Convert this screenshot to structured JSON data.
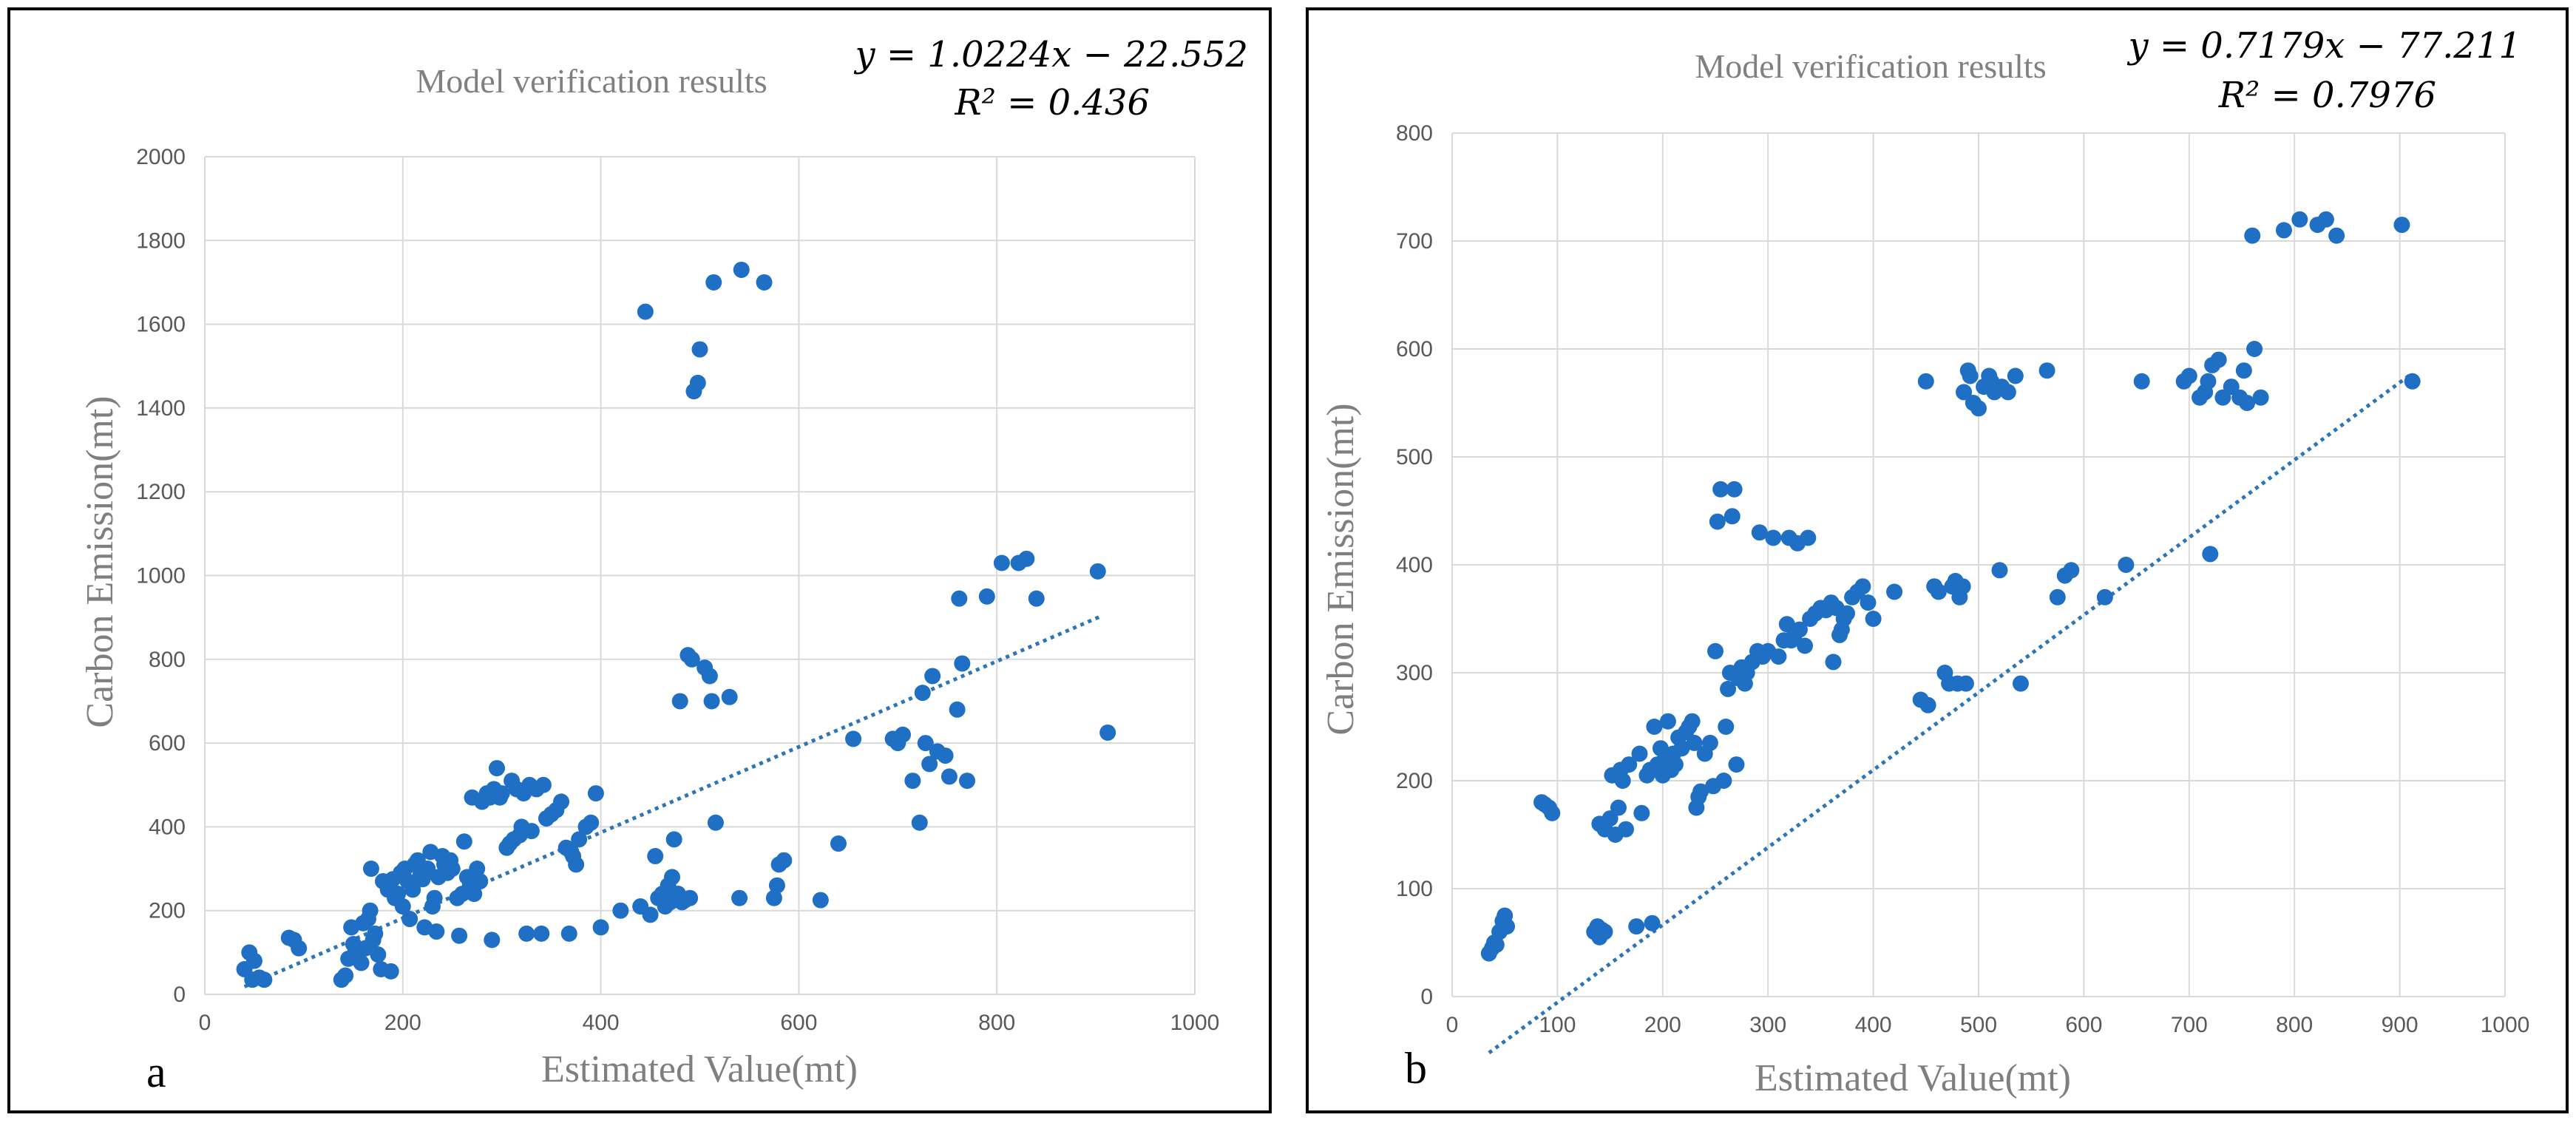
{
  "chart_data": [
    {
      "type": "scatter",
      "panel_label": "a",
      "title": "Model verification results",
      "xlabel": "Estimated Value(mt)",
      "ylabel": "Carbon Emission(mt)",
      "xlim": [
        0,
        1000
      ],
      "ylim": [
        0,
        2000
      ],
      "xticks": [
        "0",
        "200",
        "400",
        "600",
        "800",
        "1000"
      ],
      "yticks": [
        "0",
        "200",
        "400",
        "600",
        "800",
        "1000",
        "1200",
        "1400",
        "1600",
        "1800",
        "2000"
      ],
      "equation": "y = 1.0224x − 22.552",
      "r2": "R² = 0.436",
      "trendline": {
        "slope": 1.0224,
        "intercept": -22.552,
        "x_range": [
          40,
          905
        ]
      },
      "grid": true,
      "marker_color": "#1f6fc5",
      "trend_color": "#2e75b6",
      "points": [
        [
          40,
          60
        ],
        [
          45,
          100
        ],
        [
          50,
          80
        ],
        [
          48,
          35
        ],
        [
          55,
          40
        ],
        [
          60,
          35
        ],
        [
          85,
          135
        ],
        [
          90,
          130
        ],
        [
          95,
          110
        ],
        [
          138,
          35
        ],
        [
          142,
          45
        ],
        [
          145,
          85
        ],
        [
          148,
          160
        ],
        [
          150,
          120
        ],
        [
          152,
          100
        ],
        [
          155,
          95
        ],
        [
          158,
          75
        ],
        [
          160,
          170
        ],
        [
          162,
          110
        ],
        [
          165,
          180
        ],
        [
          167,
          200
        ],
        [
          170,
          130
        ],
        [
          172,
          145
        ],
        [
          175,
          95
        ],
        [
          168,
          300
        ],
        [
          178,
          60
        ],
        [
          180,
          270
        ],
        [
          185,
          250
        ],
        [
          188,
          55
        ],
        [
          190,
          275
        ],
        [
          192,
          230
        ],
        [
          195,
          240
        ],
        [
          198,
          290
        ],
        [
          200,
          210
        ],
        [
          202,
          300
        ],
        [
          205,
          270
        ],
        [
          207,
          180
        ],
        [
          210,
          250
        ],
        [
          212,
          310
        ],
        [
          215,
          320
        ],
        [
          218,
          290
        ],
        [
          220,
          275
        ],
        [
          222,
          160
        ],
        [
          225,
          300
        ],
        [
          228,
          340
        ],
        [
          230,
          210
        ],
        [
          232,
          230
        ],
        [
          234,
          150
        ],
        [
          236,
          280
        ],
        [
          240,
          330
        ],
        [
          242,
          310
        ],
        [
          245,
          290
        ],
        [
          248,
          320
        ],
        [
          250,
          300
        ],
        [
          255,
          230
        ],
        [
          257,
          140
        ],
        [
          260,
          240
        ],
        [
          262,
          365
        ],
        [
          265,
          280
        ],
        [
          268,
          260
        ],
        [
          270,
          470
        ],
        [
          272,
          240
        ],
        [
          275,
          300
        ],
        [
          278,
          270
        ],
        [
          280,
          460
        ],
        [
          285,
          480
        ],
        [
          288,
          470
        ],
        [
          290,
          130
        ],
        [
          292,
          490
        ],
        [
          295,
          540
        ],
        [
          298,
          470
        ],
        [
          300,
          480
        ],
        [
          305,
          350
        ],
        [
          308,
          360
        ],
        [
          310,
          510
        ],
        [
          312,
          370
        ],
        [
          315,
          490
        ],
        [
          318,
          380
        ],
        [
          320,
          400
        ],
        [
          322,
          480
        ],
        [
          325,
          145
        ],
        [
          328,
          500
        ],
        [
          330,
          390
        ],
        [
          335,
          490
        ],
        [
          340,
          145
        ],
        [
          342,
          500
        ],
        [
          345,
          420
        ],
        [
          350,
          430
        ],
        [
          355,
          440
        ],
        [
          360,
          460
        ],
        [
          365,
          350
        ],
        [
          368,
          145
        ],
        [
          370,
          340
        ],
        [
          372,
          330
        ],
        [
          375,
          310
        ],
        [
          378,
          370
        ],
        [
          385,
          400
        ],
        [
          390,
          410
        ],
        [
          395,
          480
        ],
        [
          400,
          160
        ],
        [
          420,
          200
        ],
        [
          440,
          210
        ],
        [
          445,
          1630
        ],
        [
          450,
          190
        ],
        [
          455,
          330
        ],
        [
          458,
          230
        ],
        [
          462,
          240
        ],
        [
          465,
          210
        ],
        [
          468,
          260
        ],
        [
          470,
          220
        ],
        [
          472,
          280
        ],
        [
          474,
          370
        ],
        [
          478,
          240
        ],
        [
          480,
          700
        ],
        [
          482,
          220
        ],
        [
          485,
          225
        ],
        [
          488,
          810
        ],
        [
          490,
          230
        ],
        [
          492,
          800
        ],
        [
          494,
          1440
        ],
        [
          498,
          1460
        ],
        [
          500,
          1540
        ],
        [
          505,
          780
        ],
        [
          510,
          760
        ],
        [
          512,
          700
        ],
        [
          514,
          1700
        ],
        [
          516,
          410
        ],
        [
          530,
          710
        ],
        [
          540,
          230
        ],
        [
          542,
          1730
        ],
        [
          565,
          1700
        ],
        [
          575,
          230
        ],
        [
          578,
          260
        ],
        [
          580,
          310
        ],
        [
          585,
          320
        ],
        [
          622,
          225
        ],
        [
          640,
          360
        ],
        [
          655,
          610
        ],
        [
          695,
          610
        ],
        [
          700,
          600
        ],
        [
          705,
          620
        ],
        [
          715,
          510
        ],
        [
          722,
          410
        ],
        [
          725,
          720
        ],
        [
          728,
          600
        ],
        [
          732,
          550
        ],
        [
          735,
          760
        ],
        [
          740,
          580
        ],
        [
          748,
          570
        ],
        [
          752,
          520
        ],
        [
          760,
          680
        ],
        [
          762,
          945
        ],
        [
          765,
          790
        ],
        [
          770,
          510
        ],
        [
          790,
          950
        ],
        [
          805,
          1030
        ],
        [
          822,
          1030
        ],
        [
          830,
          1040
        ],
        [
          840,
          945
        ],
        [
          902,
          1010
        ],
        [
          912,
          625
        ]
      ]
    },
    {
      "type": "scatter",
      "panel_label": "b",
      "title": "Model verification results",
      "xlabel": "Estimated Value(mt)",
      "ylabel": "Carbon Emission(mt)",
      "xlim": [
        0,
        1000
      ],
      "ylim": [
        0,
        800
      ],
      "xticks": [
        "0",
        "100",
        "200",
        "300",
        "400",
        "500",
        "600",
        "700",
        "800",
        "900",
        "1000"
      ],
      "yticks": [
        "0",
        "100",
        "200",
        "300",
        "400",
        "500",
        "600",
        "700",
        "800"
      ],
      "equation": "y = 0.7179x − 77.211",
      "r2": "R² = 0.7976",
      "trendline": {
        "slope": 0.7179,
        "intercept": -77.211,
        "x_range": [
          35,
          912
        ]
      },
      "grid": true,
      "marker_color": "#1f6fc5",
      "trend_color": "#2e75b6",
      "points": [
        [
          35,
          40
        ],
        [
          38,
          45
        ],
        [
          40,
          50
        ],
        [
          42,
          48
        ],
        [
          45,
          60
        ],
        [
          48,
          70
        ],
        [
          50,
          75
        ],
        [
          52,
          65
        ],
        [
          85,
          180
        ],
        [
          88,
          178
        ],
        [
          92,
          175
        ],
        [
          95,
          170
        ],
        [
          135,
          60
        ],
        [
          138,
          65
        ],
        [
          140,
          55
        ],
        [
          142,
          62
        ],
        [
          145,
          60
        ],
        [
          140,
          160
        ],
        [
          145,
          155
        ],
        [
          150,
          165
        ],
        [
          152,
          205
        ],
        [
          155,
          150
        ],
        [
          158,
          175
        ],
        [
          160,
          210
        ],
        [
          162,
          200
        ],
        [
          165,
          155
        ],
        [
          168,
          215
        ],
        [
          175,
          65
        ],
        [
          178,
          225
        ],
        [
          180,
          170
        ],
        [
          185,
          205
        ],
        [
          188,
          210
        ],
        [
          190,
          68
        ],
        [
          192,
          250
        ],
        [
          195,
          215
        ],
        [
          198,
          230
        ],
        [
          200,
          205
        ],
        [
          202,
          220
        ],
        [
          205,
          255
        ],
        [
          208,
          210
        ],
        [
          210,
          225
        ],
        [
          212,
          215
        ],
        [
          215,
          240
        ],
        [
          218,
          230
        ],
        [
          222,
          245
        ],
        [
          225,
          250
        ],
        [
          228,
          255
        ],
        [
          230,
          235
        ],
        [
          232,
          175
        ],
        [
          234,
          185
        ],
        [
          236,
          190
        ],
        [
          240,
          225
        ],
        [
          245,
          235
        ],
        [
          248,
          195
        ],
        [
          250,
          320
        ],
        [
          252,
          440
        ],
        [
          255,
          470
        ],
        [
          258,
          200
        ],
        [
          260,
          250
        ],
        [
          262,
          285
        ],
        [
          264,
          300
        ],
        [
          266,
          445
        ],
        [
          268,
          470
        ],
        [
          270,
          215
        ],
        [
          272,
          295
        ],
        [
          275,
          305
        ],
        [
          278,
          290
        ],
        [
          280,
          300
        ],
        [
          285,
          310
        ],
        [
          290,
          320
        ],
        [
          292,
          430
        ],
        [
          295,
          315
        ],
        [
          300,
          320
        ],
        [
          305,
          425
        ],
        [
          310,
          315
        ],
        [
          315,
          330
        ],
        [
          318,
          345
        ],
        [
          320,
          425
        ],
        [
          322,
          330
        ],
        [
          325,
          335
        ],
        [
          328,
          420
        ],
        [
          330,
          340
        ],
        [
          335,
          325
        ],
        [
          338,
          425
        ],
        [
          340,
          350
        ],
        [
          345,
          355
        ],
        [
          350,
          360
        ],
        [
          355,
          358
        ],
        [
          360,
          365
        ],
        [
          362,
          310
        ],
        [
          365,
          360
        ],
        [
          368,
          335
        ],
        [
          370,
          340
        ],
        [
          372,
          350
        ],
        [
          375,
          355
        ],
        [
          380,
          370
        ],
        [
          385,
          375
        ],
        [
          390,
          380
        ],
        [
          395,
          365
        ],
        [
          400,
          350
        ],
        [
          420,
          375
        ],
        [
          445,
          275
        ],
        [
          450,
          570
        ],
        [
          452,
          270
        ],
        [
          458,
          380
        ],
        [
          462,
          375
        ],
        [
          468,
          300
        ],
        [
          472,
          290
        ],
        [
          475,
          380
        ],
        [
          478,
          385
        ],
        [
          480,
          290
        ],
        [
          482,
          370
        ],
        [
          485,
          380
        ],
        [
          486,
          560
        ],
        [
          488,
          290
        ],
        [
          490,
          580
        ],
        [
          492,
          575
        ],
        [
          495,
          550
        ],
        [
          500,
          545
        ],
        [
          505,
          565
        ],
        [
          510,
          575
        ],
        [
          512,
          570
        ],
        [
          515,
          560
        ],
        [
          520,
          395
        ],
        [
          522,
          565
        ],
        [
          528,
          560
        ],
        [
          535,
          575
        ],
        [
          540,
          290
        ],
        [
          565,
          580
        ],
        [
          575,
          370
        ],
        [
          582,
          390
        ],
        [
          588,
          395
        ],
        [
          620,
          370
        ],
        [
          640,
          400
        ],
        [
          655,
          570
        ],
        [
          695,
          570
        ],
        [
          700,
          575
        ],
        [
          710,
          555
        ],
        [
          715,
          560
        ],
        [
          718,
          570
        ],
        [
          720,
          410
        ],
        [
          722,
          585
        ],
        [
          728,
          590
        ],
        [
          732,
          555
        ],
        [
          740,
          565
        ],
        [
          748,
          555
        ],
        [
          752,
          580
        ],
        [
          755,
          550
        ],
        [
          760,
          705
        ],
        [
          762,
          600
        ],
        [
          768,
          555
        ],
        [
          790,
          710
        ],
        [
          805,
          720
        ],
        [
          822,
          715
        ],
        [
          830,
          720
        ],
        [
          840,
          705
        ],
        [
          902,
          715
        ],
        [
          912,
          570
        ]
      ]
    }
  ]
}
